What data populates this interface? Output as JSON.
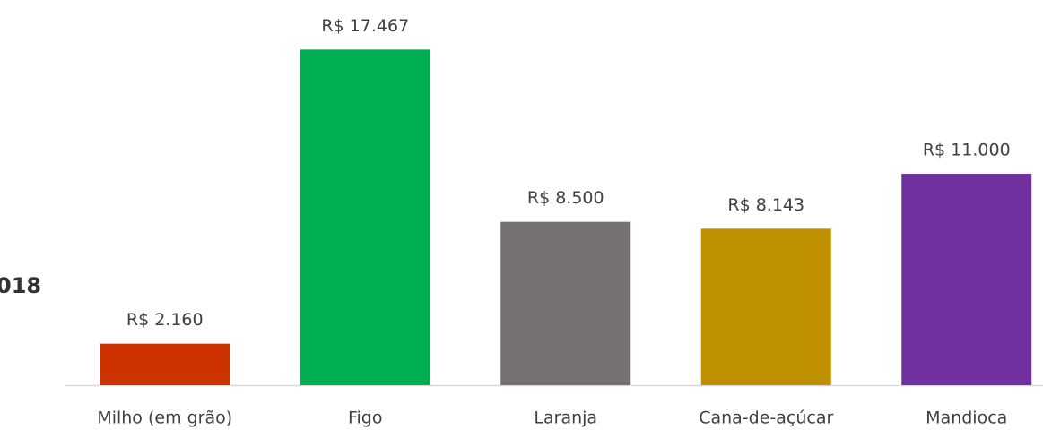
{
  "chart_data": {
    "type": "bar",
    "annotation": "018",
    "categories": [
      "Milho (em grão)",
      "Figo",
      "Laranja",
      "Cana-de-açúcar",
      "Mandioca"
    ],
    "values": [
      2160,
      17467,
      8500,
      8143,
      11000
    ],
    "value_labels": [
      "R$ 2.160",
      "R$ 17.467",
      "R$ 8.500",
      "R$ 8.143",
      "R$ 11.000"
    ],
    "colors": [
      "#cc3300",
      "#00b050",
      "#767171",
      "#bf9000",
      "#7030a0"
    ],
    "ylim": [
      0,
      20000
    ]
  }
}
